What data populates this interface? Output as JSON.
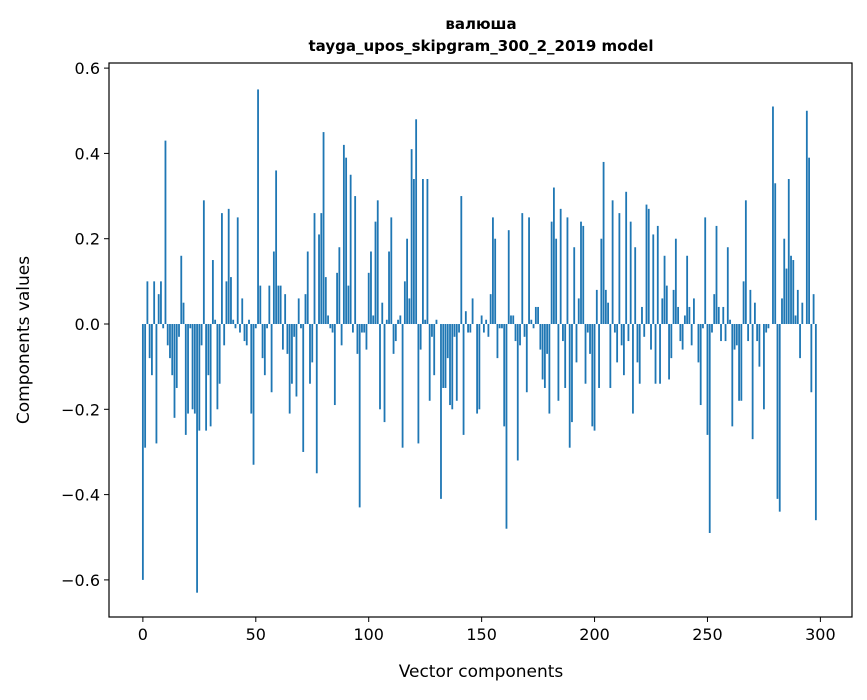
{
  "chart_data": {
    "type": "bar",
    "title": "валюша",
    "subtitle": "tayga_upos_skipgram_300_2_2019 model",
    "xlabel": "Vector components",
    "ylabel": "Components values",
    "xlim": [
      -15,
      314
    ],
    "ylim": [
      -0.687,
      0.612
    ],
    "xticks": [
      0,
      50,
      100,
      150,
      200,
      250,
      300
    ],
    "xtick_labels": [
      "0",
      "50",
      "100",
      "150",
      "200",
      "250",
      "300"
    ],
    "yticks": [
      -0.6,
      -0.4,
      -0.2,
      0.0,
      0.2,
      0.4,
      0.6
    ],
    "ytick_labels": [
      "−0.6",
      "−0.4",
      "−0.2",
      "0.0",
      "0.2",
      "0.4",
      "0.6"
    ],
    "grid": false,
    "color": "#1f77b4",
    "values": [
      -0.6,
      -0.29,
      0.1,
      -0.08,
      -0.12,
      0.1,
      -0.28,
      0.07,
      0.1,
      -0.01,
      0.43,
      -0.05,
      -0.08,
      -0.12,
      -0.22,
      -0.15,
      -0.03,
      0.16,
      0.05,
      -0.26,
      -0.21,
      -0.01,
      -0.2,
      -0.21,
      -0.63,
      -0.25,
      -0.05,
      0.29,
      -0.25,
      -0.12,
      -0.24,
      0.15,
      0.01,
      -0.2,
      -0.14,
      0.26,
      -0.05,
      0.1,
      0.27,
      0.11,
      0.01,
      -0.01,
      0.25,
      -0.02,
      0.06,
      -0.04,
      -0.05,
      0.01,
      -0.21,
      -0.33,
      -0.01,
      0.55,
      0.09,
      -0.08,
      -0.12,
      -0.01,
      0.09,
      -0.16,
      0.17,
      0.36,
      0.09,
      0.09,
      -0.06,
      0.07,
      -0.07,
      -0.21,
      -0.14,
      -0.03,
      -0.17,
      0.06,
      -0.01,
      -0.3,
      0.07,
      0.17,
      -0.14,
      -0.09,
      0.26,
      -0.35,
      0.21,
      0.26,
      0.45,
      0.11,
      0.02,
      -0.01,
      -0.02,
      -0.19,
      0.12,
      0.18,
      -0.05,
      0.42,
      0.39,
      0.09,
      0.35,
      -0.02,
      0.3,
      -0.07,
      -0.43,
      -0.02,
      -0.02,
      -0.06,
      0.12,
      0.17,
      0.02,
      0.24,
      0.29,
      -0.2,
      0.05,
      -0.23,
      0.01,
      0.17,
      0.25,
      -0.07,
      -0.04,
      0.01,
      0.02,
      -0.29,
      0.1,
      0.2,
      0.06,
      0.41,
      0.34,
      0.48,
      -0.28,
      -0.06,
      0.34,
      0.01,
      0.34,
      -0.18,
      -0.03,
      -0.12,
      0.01,
      0.0,
      -0.41,
      -0.15,
      -0.15,
      -0.08,
      -0.19,
      -0.2,
      -0.03,
      -0.18,
      -0.02,
      0.3,
      -0.26,
      0.03,
      -0.02,
      -0.02,
      0.06,
      0.0,
      -0.21,
      -0.2,
      0.02,
      -0.02,
      0.01,
      -0.03,
      0.07,
      0.25,
      0.2,
      -0.08,
      -0.01,
      -0.01,
      -0.24,
      -0.48,
      0.22,
      0.02,
      0.02,
      -0.04,
      -0.32,
      -0.05,
      0.26,
      -0.03,
      -0.16,
      0.25,
      0.01,
      -0.01,
      0.04,
      0.04,
      -0.06,
      -0.13,
      -0.15,
      -0.07,
      -0.21,
      0.24,
      0.32,
      0.2,
      -0.18,
      0.27,
      -0.04,
      -0.15,
      0.25,
      -0.29,
      -0.23,
      0.18,
      -0.09,
      0.06,
      0.24,
      0.23,
      -0.14,
      -0.02,
      -0.07,
      -0.24,
      -0.25,
      0.08,
      -0.15,
      0.2,
      0.38,
      0.08,
      0.05,
      -0.15,
      0.29,
      -0.02,
      -0.09,
      0.26,
      -0.05,
      -0.12,
      0.31,
      -0.04,
      0.24,
      -0.21,
      0.18,
      -0.09,
      -0.14,
      0.04,
      -0.03,
      0.28,
      0.27,
      -0.06,
      0.21,
      -0.14,
      0.23,
      -0.14,
      0.06,
      0.16,
      0.09,
      -0.13,
      -0.08,
      0.08,
      0.2,
      0.04,
      -0.04,
      -0.06,
      0.02,
      0.16,
      0.04,
      -0.05,
      0.06,
      0.0,
      -0.09,
      -0.19,
      -0.01,
      0.25,
      -0.26,
      -0.49,
      -0.02,
      0.07,
      0.23,
      0.04,
      -0.04,
      0.04,
      -0.04,
      0.18,
      0.01,
      -0.24,
      -0.06,
      -0.05,
      -0.18,
      -0.18,
      0.1,
      0.29,
      -0.04,
      0.08,
      -0.27,
      0.05,
      -0.04,
      -0.1,
      0.0,
      -0.2,
      -0.02,
      -0.01,
      0.0,
      0.51,
      0.33,
      -0.41,
      -0.44,
      0.06,
      0.2,
      0.13,
      0.34,
      0.16,
      0.15,
      0.02,
      0.08,
      -0.08,
      0.05,
      0.0,
      0.5,
      0.39,
      -0.16,
      0.07,
      -0.46
    ]
  }
}
